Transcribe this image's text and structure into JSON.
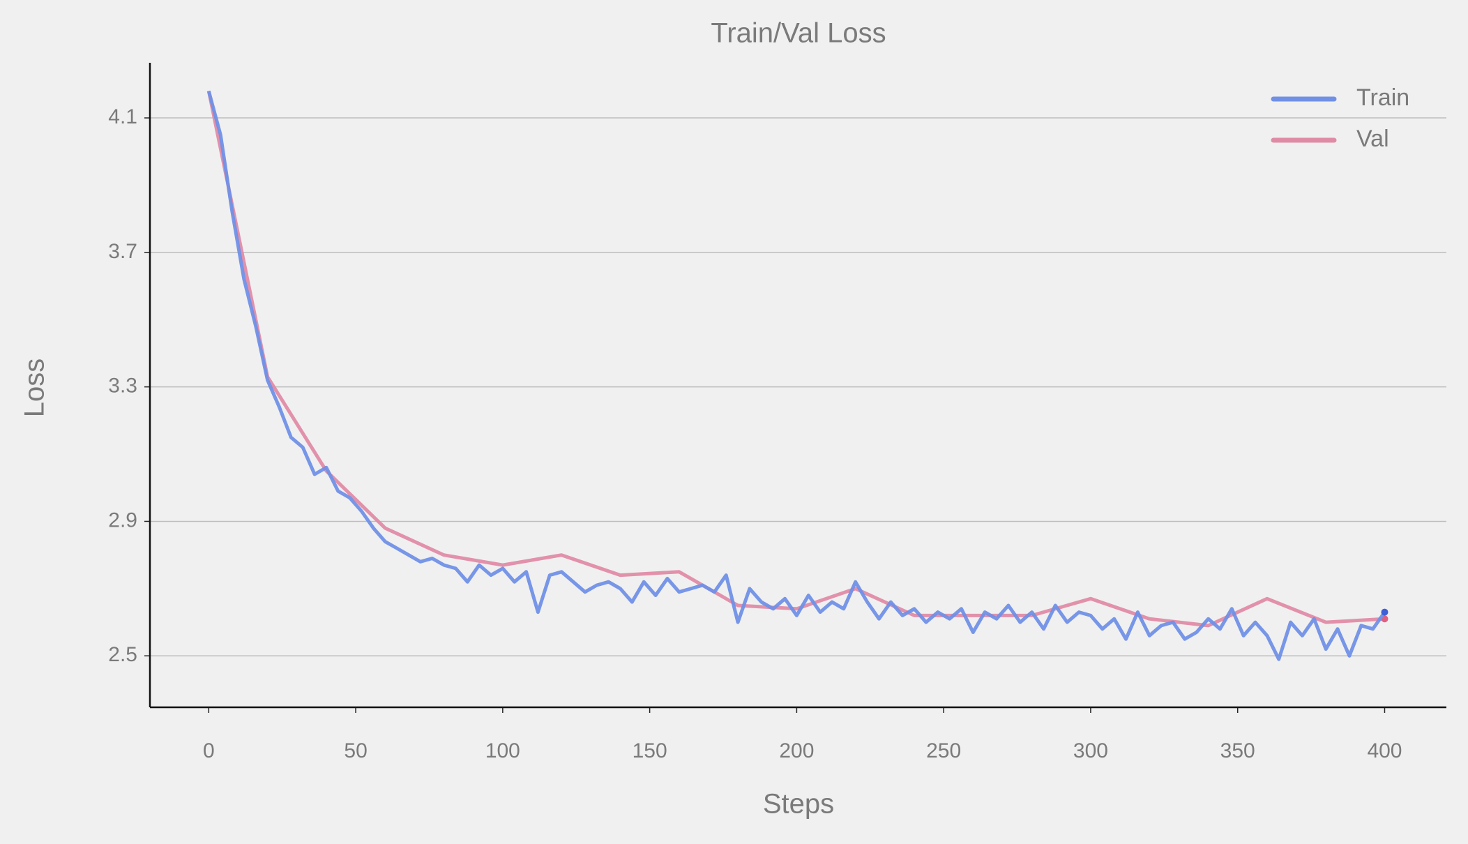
{
  "chart_data": {
    "type": "line",
    "title": "Train/Val Loss",
    "xlabel": "Steps",
    "ylabel": "Loss",
    "xlim": [
      -20,
      421
    ],
    "ylim": [
      2.347,
      4.264
    ],
    "xticks": [
      0,
      50,
      100,
      150,
      200,
      250,
      300,
      350,
      400
    ],
    "yticks": [
      2.5,
      2.9,
      3.3,
      3.7,
      4.1
    ],
    "grid": "y",
    "legend": "upper right",
    "series": [
      {
        "name": "Train",
        "color": "#7090e6",
        "end_color": "#3f5fd6",
        "x": [
          0,
          4,
          8,
          12,
          16,
          20,
          24,
          28,
          32,
          36,
          40,
          44,
          48,
          52,
          56,
          60,
          64,
          68,
          72,
          76,
          80,
          84,
          88,
          92,
          96,
          100,
          104,
          108,
          112,
          116,
          120,
          124,
          128,
          132,
          136,
          140,
          144,
          148,
          152,
          156,
          160,
          164,
          168,
          172,
          176,
          180,
          184,
          188,
          192,
          196,
          200,
          204,
          208,
          212,
          216,
          220,
          224,
          228,
          232,
          236,
          240,
          244,
          248,
          252,
          256,
          260,
          264,
          268,
          272,
          276,
          280,
          284,
          288,
          292,
          296,
          300,
          304,
          308,
          312,
          316,
          320,
          324,
          328,
          332,
          336,
          340,
          344,
          348,
          352,
          356,
          360,
          364,
          368,
          372,
          376,
          380,
          384,
          388,
          392,
          396,
          400
        ],
        "values": [
          4.18,
          4.05,
          3.82,
          3.62,
          3.48,
          3.32,
          3.24,
          3.15,
          3.12,
          3.04,
          3.06,
          2.99,
          2.97,
          2.93,
          2.88,
          2.84,
          2.82,
          2.8,
          2.78,
          2.79,
          2.77,
          2.76,
          2.72,
          2.77,
          2.74,
          2.76,
          2.72,
          2.75,
          2.63,
          2.74,
          2.75,
          2.72,
          2.69,
          2.71,
          2.72,
          2.7,
          2.66,
          2.72,
          2.68,
          2.73,
          2.69,
          2.7,
          2.71,
          2.69,
          2.74,
          2.6,
          2.7,
          2.66,
          2.64,
          2.67,
          2.62,
          2.68,
          2.63,
          2.66,
          2.64,
          2.72,
          2.66,
          2.61,
          2.66,
          2.62,
          2.64,
          2.6,
          2.63,
          2.61,
          2.64,
          2.57,
          2.63,
          2.61,
          2.65,
          2.6,
          2.63,
          2.58,
          2.65,
          2.6,
          2.63,
          2.62,
          2.58,
          2.61,
          2.55,
          2.63,
          2.56,
          2.59,
          2.6,
          2.55,
          2.57,
          2.61,
          2.58,
          2.64,
          2.56,
          2.6,
          2.56,
          2.49,
          2.6,
          2.56,
          2.61,
          2.52,
          2.58,
          2.5,
          2.59,
          2.58,
          2.63
        ]
      },
      {
        "name": "Val",
        "color": "#e08ba6",
        "end_color": "#e0607f",
        "x": [
          0,
          20,
          40,
          60,
          80,
          100,
          120,
          140,
          160,
          180,
          200,
          220,
          240,
          260,
          280,
          300,
          320,
          340,
          360,
          380,
          400
        ],
        "values": [
          4.18,
          3.33,
          3.05,
          2.88,
          2.8,
          2.77,
          2.8,
          2.74,
          2.75,
          2.65,
          2.64,
          2.7,
          2.62,
          2.62,
          2.62,
          2.67,
          2.61,
          2.59,
          2.67,
          2.6,
          2.61
        ]
      }
    ]
  }
}
